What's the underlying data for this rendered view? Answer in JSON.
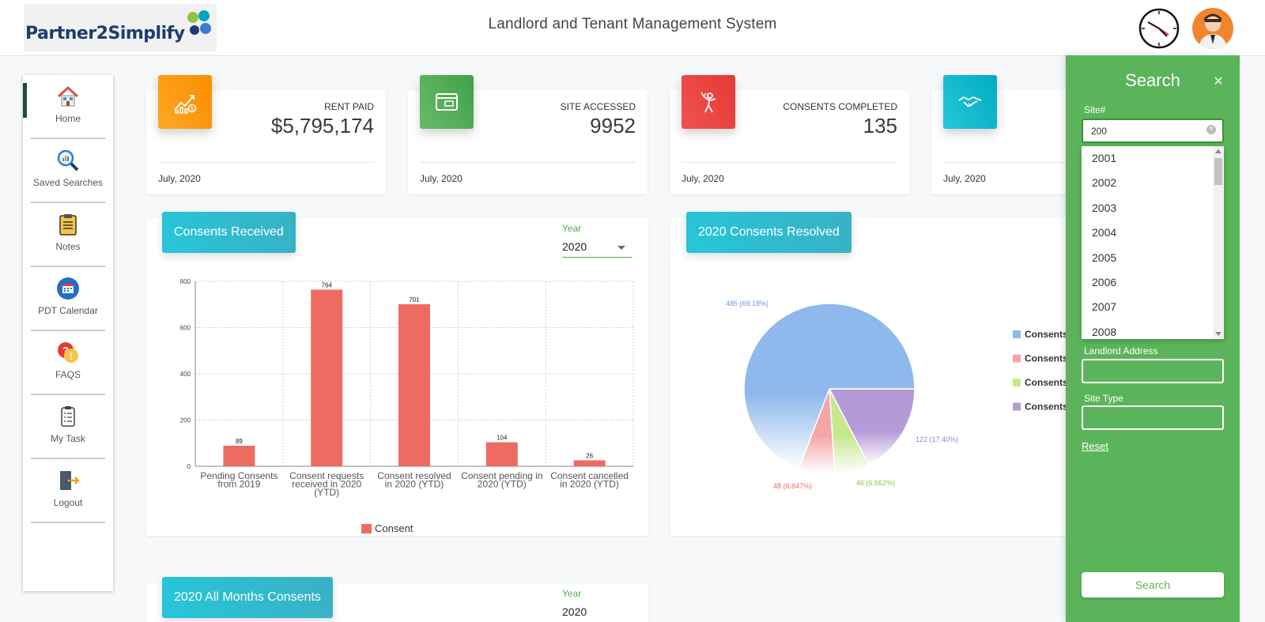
{
  "header": {
    "logo_text": "Partner2Simplify",
    "title": "Landlord and Tenant Management System"
  },
  "sidebar": {
    "items": [
      {
        "label": "Home",
        "icon": "home-icon"
      },
      {
        "label": "Saved Searches",
        "icon": "saved-search-icon"
      },
      {
        "label": "Notes",
        "icon": "clipboard-icon"
      },
      {
        "label": "PDT Calendar",
        "icon": "calendar-icon"
      },
      {
        "label": "FAQS",
        "icon": "faq-icon"
      },
      {
        "label": "My Task",
        "icon": "task-icon"
      },
      {
        "label": "Logout",
        "icon": "logout-icon"
      }
    ]
  },
  "cards": [
    {
      "label": "RENT PAID",
      "value": "$5,795,174",
      "footer": "July, 2020",
      "color": "#fb8c00",
      "icon": "chart-growth-icon"
    },
    {
      "label": "SITE ACCESSED",
      "value": "9952",
      "footer": "July, 2020",
      "color": "#5cb45a",
      "icon": "browser-window-icon"
    },
    {
      "label": "CONSENTS COMPLETED",
      "value": "135",
      "footer": "July, 2020",
      "color": "#e53935",
      "icon": "success-person-icon"
    },
    {
      "label": "",
      "value": "",
      "footer": "July, 2020",
      "color": "#26c6da",
      "icon": "handshake-icon"
    }
  ],
  "consents_received": {
    "title": "Consents Received",
    "year_label": "Year",
    "year_value": "2020"
  },
  "consents_resolved": {
    "title": "2020 Consents Resolved",
    "legend": [
      "Consents",
      "Consents",
      "Consents",
      "Consents"
    ]
  },
  "all_months": {
    "title": "2020 All Months Consents",
    "year_label": "Year",
    "year_value": "2020"
  },
  "search": {
    "title": "Search",
    "site_label": "Site#",
    "site_value": "200",
    "options": [
      "2001",
      "2002",
      "2003",
      "2004",
      "2005",
      "2006",
      "2007",
      "2008"
    ],
    "landlord_address_label": "Landlord Address",
    "landlord_address_value": "",
    "site_type_label": "Site Type",
    "site_type_value": "",
    "reset_label": "Reset",
    "search_label": "Search"
  },
  "chart_data": [
    {
      "type": "bar",
      "categories": [
        [
          "Pending Consents",
          "from 2019"
        ],
        [
          "Consent requests",
          "received in 2020",
          "(YTD)"
        ],
        [
          "Consent resolved",
          "in 2020 (YTD)"
        ],
        [
          "Consent pending in",
          "2020 (YTD)"
        ],
        [
          "Consent cancelled",
          "in 2020 (YTD)"
        ]
      ],
      "series": [
        {
          "name": "Consent",
          "values": [
            89,
            764,
            701,
            104,
            26
          ],
          "color": "#ee6b62"
        }
      ],
      "ylim": [
        0,
        800
      ],
      "yticks": [
        0,
        200,
        400,
        600,
        800
      ],
      "grid": true,
      "legend": "bottom"
    },
    {
      "type": "pie",
      "title": "",
      "slices": [
        {
          "value": 485,
          "label": "485 (69.18%)",
          "color": "#8fb8ec",
          "label_color": "#6f9bd6"
        },
        {
          "value": 48,
          "label": "48 (6.847%)",
          "color": "#f4a6a6",
          "label_color": "#ee6b62"
        },
        {
          "value": 46,
          "label": "46 (6.562%)",
          "color": "#c6e88c",
          "label_color": "#8dc63f"
        },
        {
          "value": 122,
          "label": "122 (17.40%)",
          "color": "#b69ad8",
          "label_color": "#a07cd0"
        }
      ],
      "legend": "right"
    }
  ]
}
